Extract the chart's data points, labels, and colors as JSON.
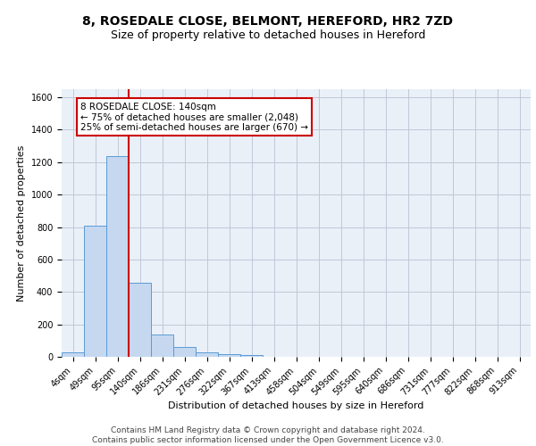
{
  "title": "8, ROSEDALE CLOSE, BELMONT, HEREFORD, HR2 7ZD",
  "subtitle": "Size of property relative to detached houses in Hereford",
  "xlabel": "Distribution of detached houses by size in Hereford",
  "ylabel": "Number of detached properties",
  "footer_line1": "Contains HM Land Registry data © Crown copyright and database right 2024.",
  "footer_line2": "Contains public sector information licensed under the Open Government Licence v3.0.",
  "bar_labels": [
    "4sqm",
    "49sqm",
    "95sqm",
    "140sqm",
    "186sqm",
    "231sqm",
    "276sqm",
    "322sqm",
    "367sqm",
    "413sqm",
    "458sqm",
    "504sqm",
    "549sqm",
    "595sqm",
    "640sqm",
    "686sqm",
    "731sqm",
    "777sqm",
    "822sqm",
    "868sqm",
    "913sqm"
  ],
  "bar_values": [
    25,
    810,
    1240,
    455,
    135,
    60,
    25,
    15,
    10,
    0,
    0,
    0,
    0,
    0,
    0,
    0,
    0,
    0,
    0,
    0,
    0
  ],
  "bar_color": "#c5d8f0",
  "bar_edge_color": "#5b9bd5",
  "vline_color": "#cc0000",
  "annotation_text": "8 ROSEDALE CLOSE: 140sqm\n← 75% of detached houses are smaller (2,048)\n25% of semi-detached houses are larger (670) →",
  "annotation_box_color": "#cc0000",
  "ylim": [
    0,
    1650
  ],
  "yticks": [
    0,
    200,
    400,
    600,
    800,
    1000,
    1200,
    1400,
    1600
  ],
  "grid_color": "#c0c8d8",
  "background_color": "#eaf0f8",
  "title_fontsize": 10,
  "subtitle_fontsize": 9,
  "label_fontsize": 8,
  "tick_fontsize": 7,
  "footer_fontsize": 6.5,
  "annot_fontsize": 7.5
}
